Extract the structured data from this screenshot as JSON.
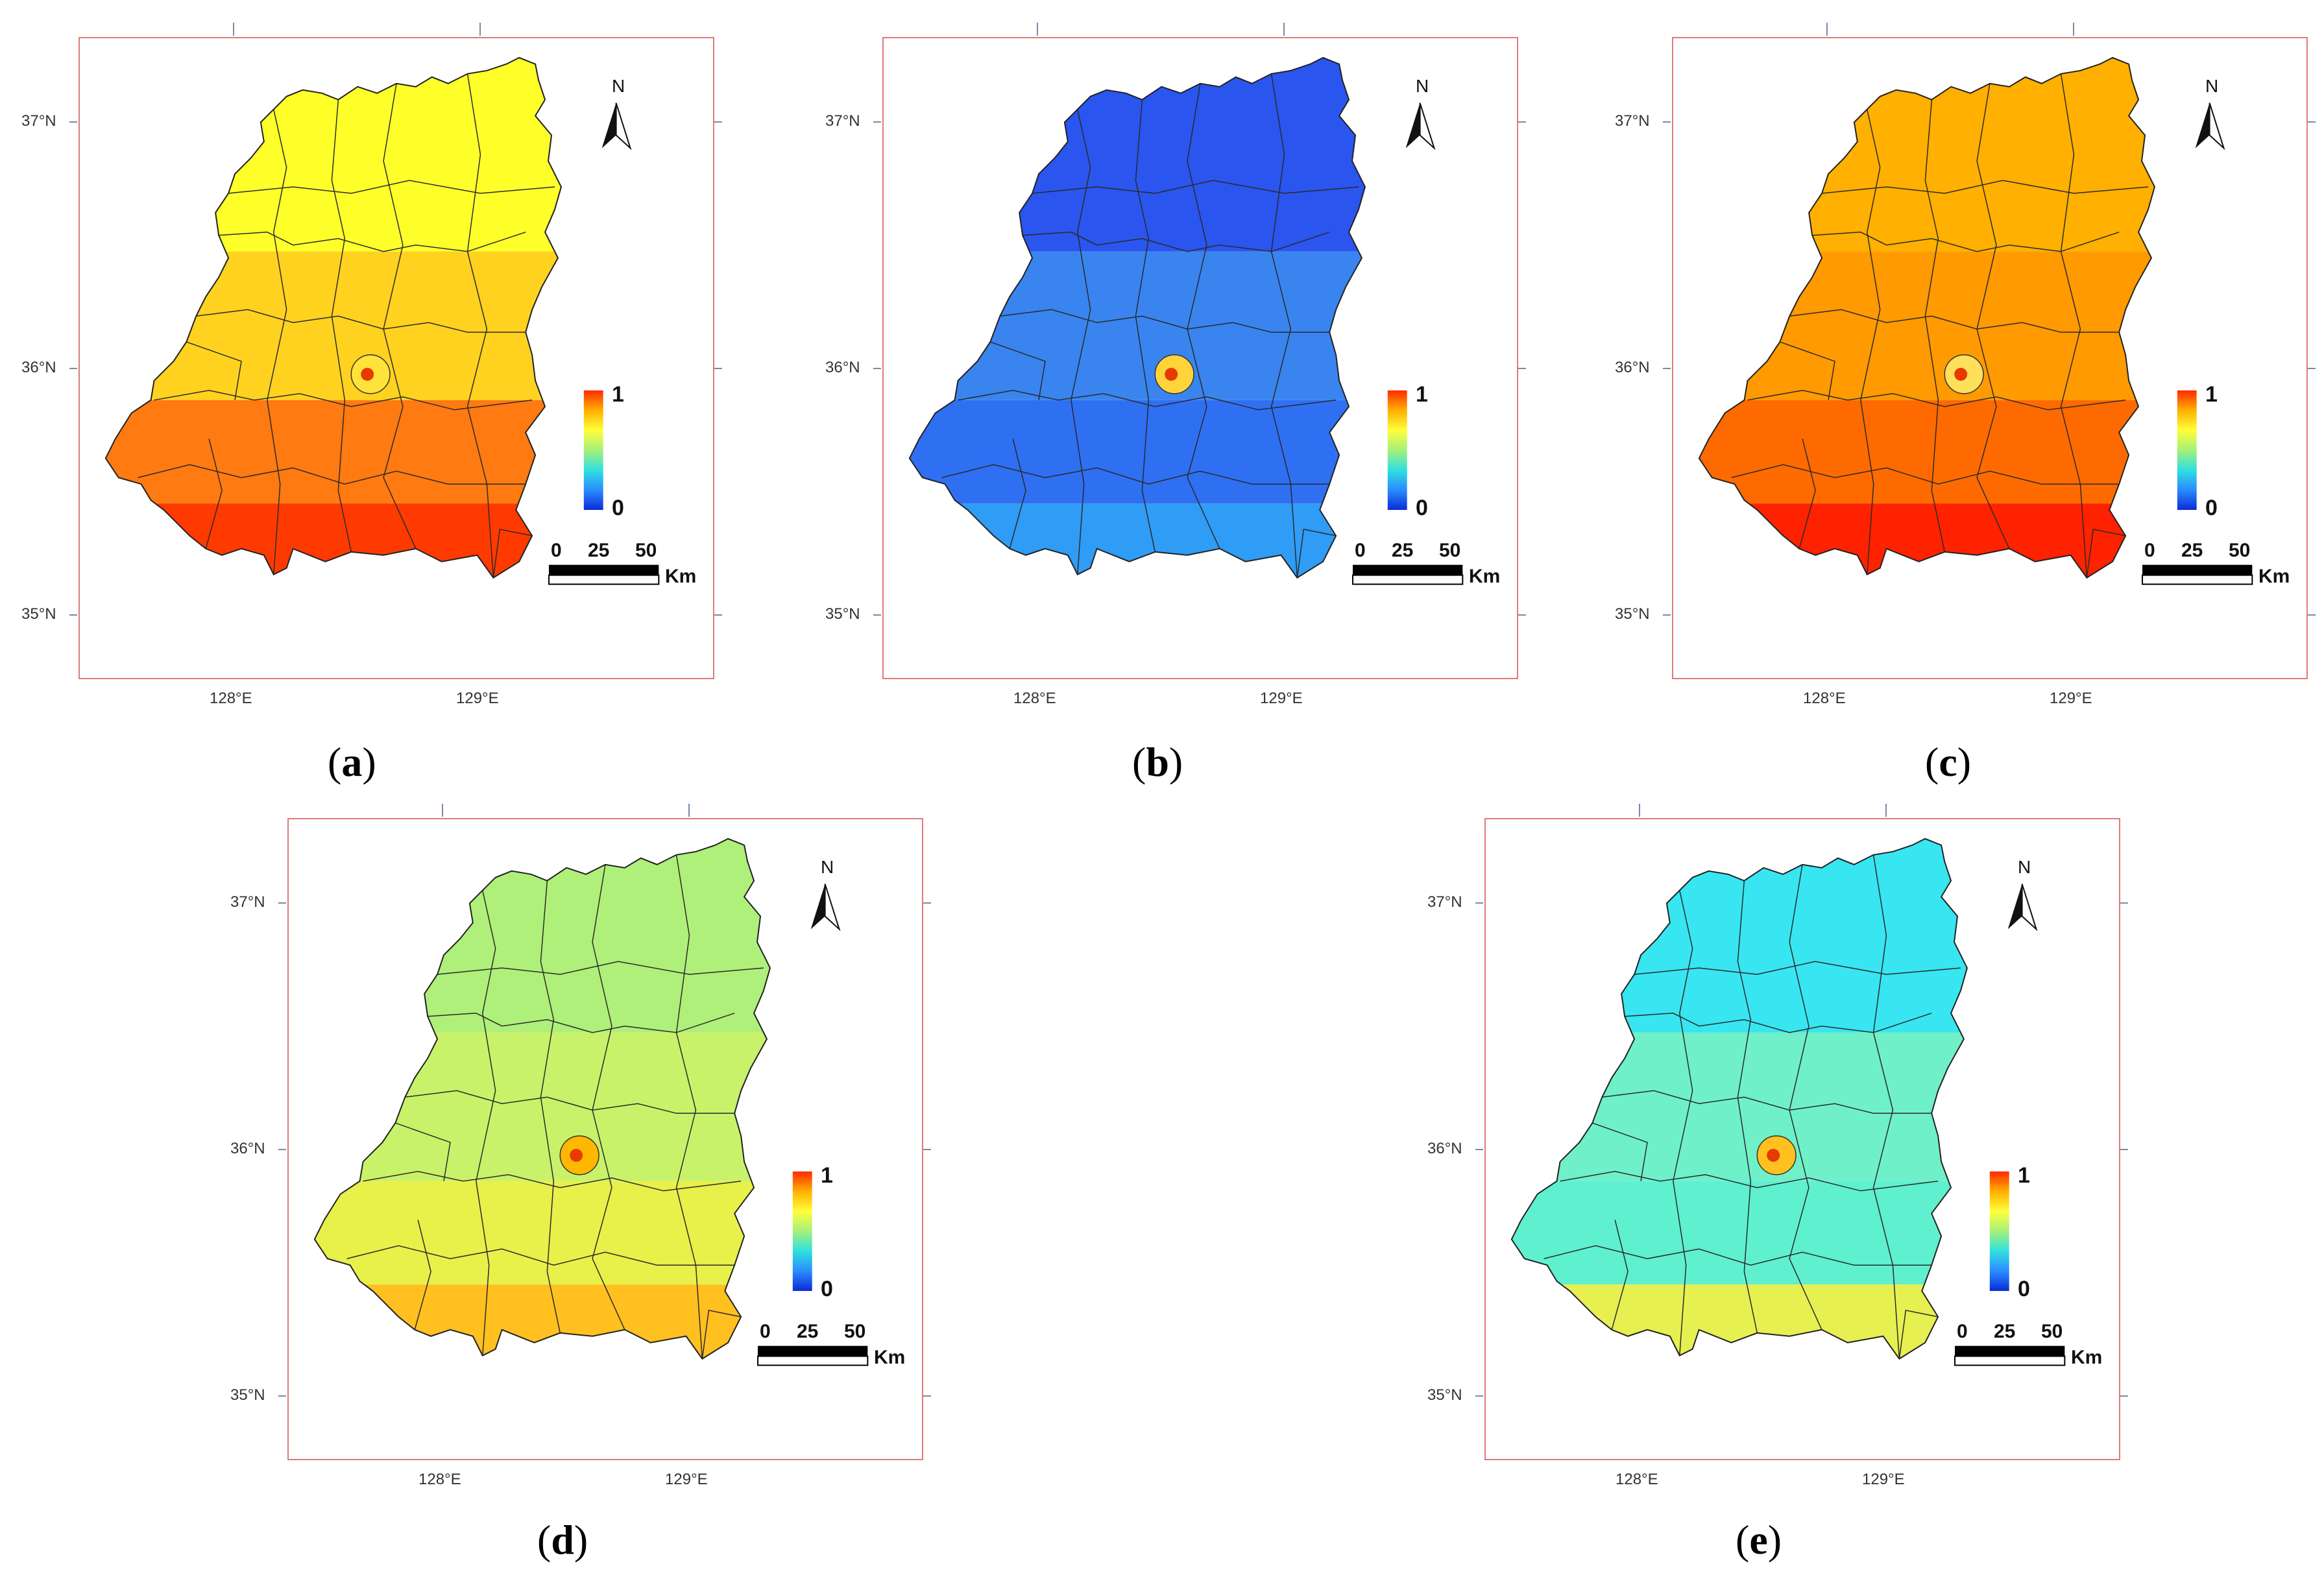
{
  "panels": [
    {
      "id": "a",
      "caption": "a",
      "palette": "warm"
    },
    {
      "id": "b",
      "caption": "b",
      "palette": "cool"
    },
    {
      "id": "c",
      "caption": "c",
      "palette": "hot"
    },
    {
      "id": "d",
      "caption": "d",
      "palette": "yellowgreen"
    },
    {
      "id": "e",
      "caption": "e",
      "palette": "cyan"
    }
  ],
  "axes": {
    "lat_labels": [
      "37°N",
      "36°N",
      "35°N"
    ],
    "lon_labels": [
      "128°E",
      "129°E"
    ]
  },
  "legend": {
    "max_label": "1",
    "min_label": "0"
  },
  "scale_bar": {
    "ticks": [
      "0",
      "25",
      "50"
    ],
    "unit": "Km"
  },
  "north_arrow": {
    "label": "N"
  },
  "colors": {
    "frame": "#e07a7a",
    "gradient": [
      "#0b2bd6",
      "#2a8cff",
      "#2fe0e0",
      "#a6f07a",
      "#ffff3a",
      "#ffb000",
      "#ff2a00"
    ]
  }
}
